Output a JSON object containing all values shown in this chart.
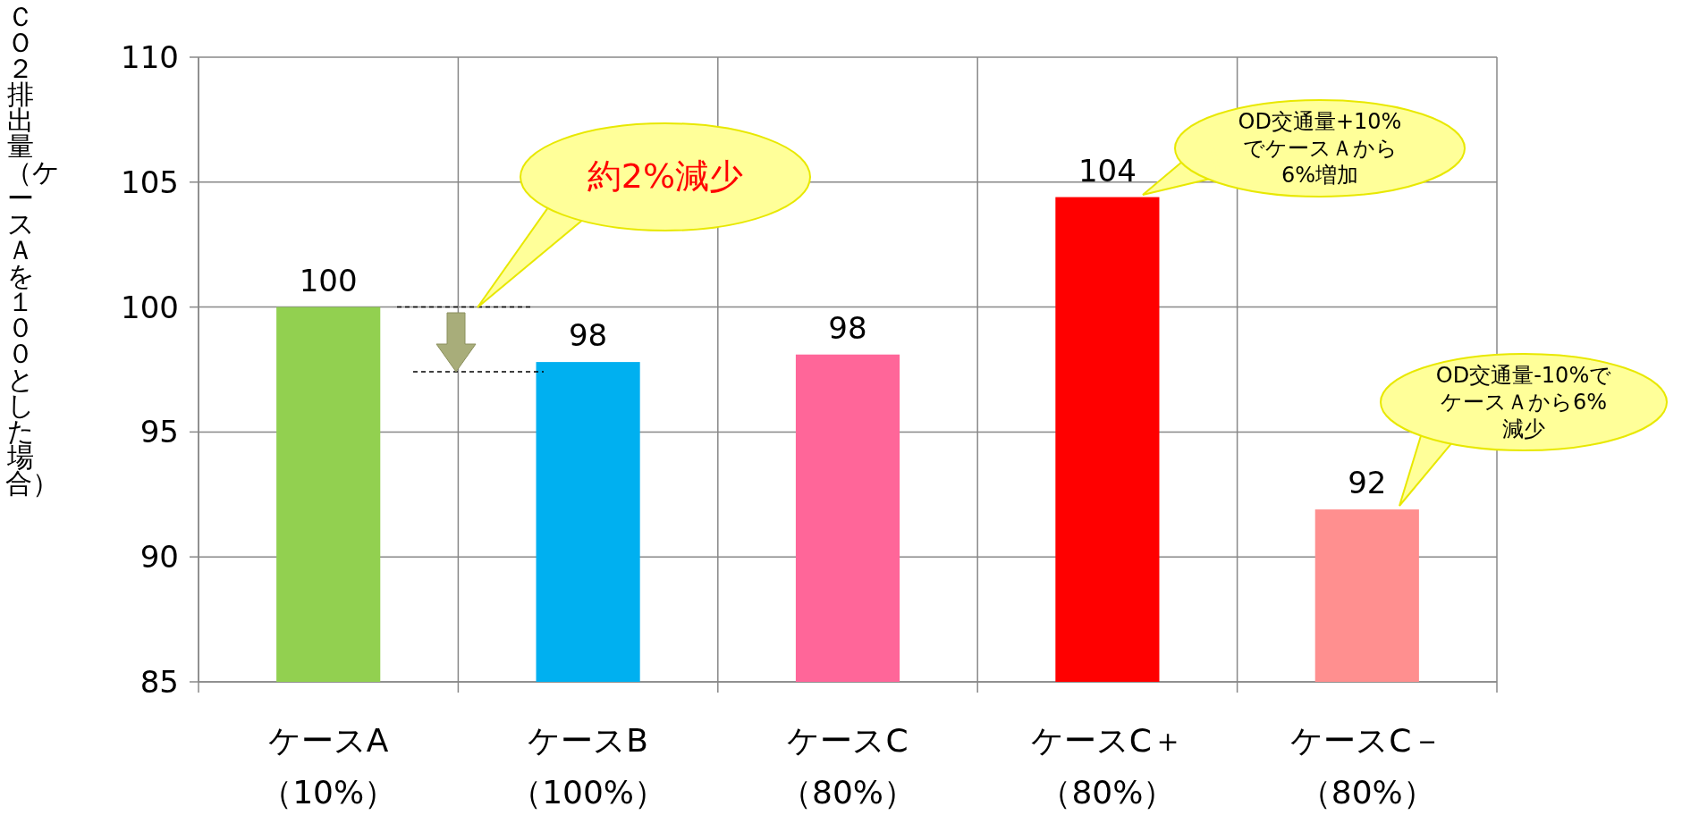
{
  "chart_data": {
    "type": "bar",
    "ylabel": "ＣＯ２排出量（ケースＡを１００とした場合）",
    "categories": [
      "ケースA（10%）",
      "ケースB（100%）",
      "ケースC（80%）",
      "ケースC＋（80%）",
      "ケースC－（80%）"
    ],
    "values": [
      100,
      97.8,
      98.1,
      104.4,
      91.9
    ],
    "colors": [
      "#92d050",
      "#00b0f0",
      "#ff6699",
      "#ff0000",
      "#ff8f8f"
    ],
    "value_labels": [
      "100",
      "98",
      "98",
      "104",
      "92"
    ],
    "ylim": [
      85,
      110
    ],
    "yticks": [
      85,
      90,
      95,
      100,
      105,
      110
    ],
    "grid": true,
    "annotations": [
      "約2%減少",
      "OD交通量+10%でケースＡから6%増加",
      "OD交通量-10%でケースＡから6%減少"
    ]
  }
}
